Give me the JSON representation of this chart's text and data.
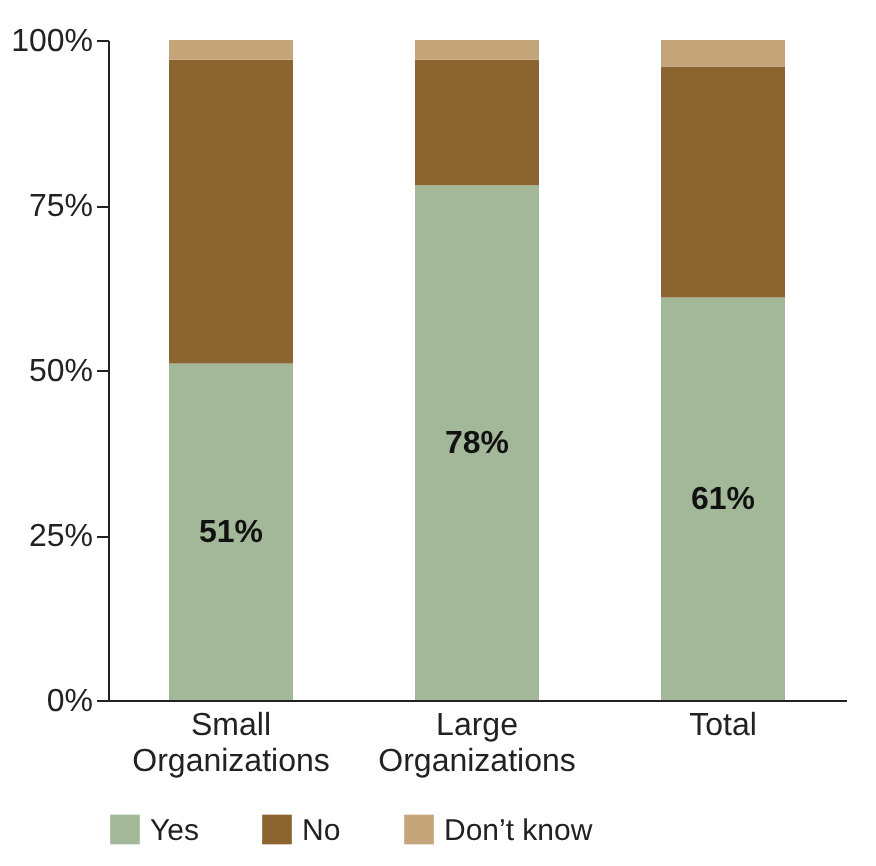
{
  "chart_data": {
    "type": "bar",
    "stacked": true,
    "categories": [
      "Small Organizations",
      "Large Organizations",
      "Total"
    ],
    "series": [
      {
        "name": "Yes",
        "color": "#a3b899",
        "values": [
          51,
          78,
          61
        ],
        "value_labels": [
          "51%",
          "78%",
          "61%"
        ]
      },
      {
        "name": "No",
        "color": "#8b6430",
        "values": [
          46,
          19,
          35
        ]
      },
      {
        "name": "Don’t know",
        "color": "#c4a57a",
        "values": [
          3,
          3,
          4
        ]
      }
    ],
    "ylim": [
      0,
      100
    ],
    "yticks": [
      {
        "value": 0,
        "label": "0%"
      },
      {
        "value": 25,
        "label": "25%"
      },
      {
        "value": 50,
        "label": "50%"
      },
      {
        "value": 75,
        "label": "75%"
      },
      {
        "value": 100,
        "label": "100%"
      }
    ],
    "grid": false,
    "legend": "bottom"
  }
}
